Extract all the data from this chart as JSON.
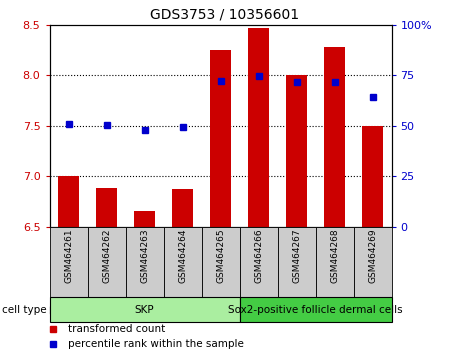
{
  "title": "GDS3753 / 10356601",
  "samples": [
    "GSM464261",
    "GSM464262",
    "GSM464263",
    "GSM464264",
    "GSM464265",
    "GSM464266",
    "GSM464267",
    "GSM464268",
    "GSM464269"
  ],
  "bar_values": [
    7.0,
    6.88,
    6.65,
    6.87,
    8.25,
    8.47,
    8.0,
    8.28,
    7.5
  ],
  "bar_baseline": 6.5,
  "blue_dot_values": [
    7.52,
    7.51,
    7.46,
    7.49,
    7.94,
    7.99,
    7.93,
    7.93,
    7.78
  ],
  "left_ylim": [
    6.5,
    8.5
  ],
  "right_ylim": [
    0,
    100
  ],
  "left_yticks": [
    6.5,
    7.0,
    7.5,
    8.0,
    8.5
  ],
  "right_yticks": [
    0,
    25,
    50,
    75,
    100
  ],
  "right_yticklabels": [
    "0",
    "25",
    "50",
    "75",
    "100%"
  ],
  "bar_color": "#cc0000",
  "blue_color": "#0000cc",
  "cell_type_groups": [
    {
      "label": "SKP",
      "start": 0,
      "end": 4,
      "color": "#aaeea0"
    },
    {
      "label": "Sox2-positive follicle dermal cells",
      "start": 5,
      "end": 8,
      "color": "#44cc44"
    }
  ],
  "cell_type_label": "cell type",
  "legend_items": [
    {
      "label": "transformed count",
      "color": "#cc0000"
    },
    {
      "label": "percentile rank within the sample",
      "color": "#0000cc"
    }
  ]
}
